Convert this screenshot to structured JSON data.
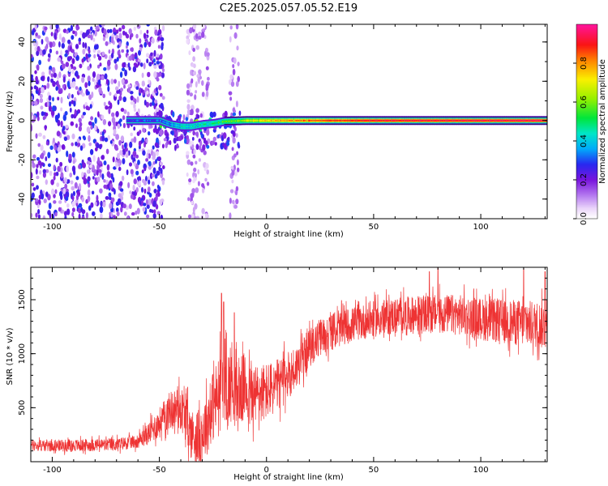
{
  "chart_data": [
    {
      "type": "heatmap",
      "title": "C2E5.2025.057.05.52.E19",
      "xlabel": "Height of straight line (km)",
      "ylabel": "Frequency (Hz)",
      "xlim": [
        -110,
        131
      ],
      "ylim": [
        -50,
        49
      ],
      "xticks": [
        -100,
        -50,
        0,
        50,
        100
      ],
      "xtick_labels": [
        "-100",
        "-50",
        "0",
        "50",
        "100"
      ],
      "yticks": [
        -40,
        -20,
        0,
        20,
        40
      ],
      "ytick_labels": [
        "-40",
        "-20",
        "0",
        "20",
        "40"
      ],
      "colorbar": {
        "label": "Normalized spectral amplitude",
        "range": [
          0,
          1
        ],
        "ticks": [
          0,
          0.2,
          0.4,
          0.6,
          0.8
        ],
        "tick_labels": [
          "0.0",
          "0.2",
          "0.4",
          "0.6",
          "0.8"
        ],
        "colormap": "rainbow-white-purple-blue-cyan-green-yellow-red-pink"
      },
      "features": {
        "noise_x_range": [
          -110,
          -48
        ],
        "noise_amplitude": [
          0.05,
          0.3
        ],
        "sparse_noise_x_ranges": [
          [
            -37,
            -27
          ],
          [
            -17,
            -13
          ]
        ],
        "line_frequency": 0,
        "onset_x": -50,
        "line_amplitude_points": [
          [
            -65,
            0.3
          ],
          [
            -52,
            0.3
          ],
          [
            -45,
            0.35
          ],
          [
            -40,
            0.45
          ],
          [
            -30,
            0.45
          ],
          [
            -20,
            0.55
          ],
          [
            -10,
            0.65
          ],
          [
            0,
            0.75
          ],
          [
            20,
            0.85
          ],
          [
            50,
            0.92
          ],
          [
            131,
            0.95
          ]
        ],
        "line_frequency_offset_points": [
          [
            -50,
            0
          ],
          [
            -45,
            -2
          ],
          [
            -40,
            -3
          ],
          [
            -35,
            -3
          ],
          [
            -30,
            -2
          ],
          [
            -25,
            -1.5
          ],
          [
            -20,
            -0.5
          ],
          [
            -10,
            0
          ],
          [
            131,
            0
          ]
        ]
      }
    },
    {
      "type": "line",
      "title": "",
      "xlabel": "Height of straight line (km)",
      "ylabel": "SNR (10 * v/v)",
      "xlim": [
        -110,
        131
      ],
      "ylim": [
        0,
        1800
      ],
      "xticks": [
        -100,
        -50,
        0,
        50,
        100
      ],
      "xtick_labels": [
        "-100",
        "-50",
        "0",
        "50",
        "100"
      ],
      "yticks": [
        500,
        1000,
        1500
      ],
      "ytick_labels": [
        "500",
        "1000",
        "1500"
      ],
      "series_color": "#ee3333",
      "series_points": [
        [
          -110,
          150
        ],
        [
          -90,
          150
        ],
        [
          -70,
          160
        ],
        [
          -60,
          190
        ],
        [
          -55,
          260
        ],
        [
          -50,
          360
        ],
        [
          -45,
          480
        ],
        [
          -40,
          500
        ],
        [
          -38,
          420
        ],
        [
          -35,
          250
        ],
        [
          -31,
          220
        ],
        [
          -28,
          350
        ],
        [
          -25,
          520
        ],
        [
          -22,
          620
        ],
        [
          -20,
          820
        ],
        [
          -18,
          650
        ],
        [
          -16,
          780
        ],
        [
          -14,
          600
        ],
        [
          -12,
          650
        ],
        [
          -10,
          700
        ],
        [
          -8,
          600
        ],
        [
          -5,
          620
        ],
        [
          0,
          650
        ],
        [
          5,
          700
        ],
        [
          10,
          800
        ],
        [
          15,
          900
        ],
        [
          20,
          1050
        ],
        [
          25,
          1150
        ],
        [
          30,
          1200
        ],
        [
          40,
          1270
        ],
        [
          50,
          1320
        ],
        [
          60,
          1350
        ],
        [
          70,
          1360
        ],
        [
          80,
          1370
        ],
        [
          90,
          1360
        ],
        [
          100,
          1320
        ],
        [
          110,
          1300
        ],
        [
          120,
          1280
        ],
        [
          131,
          1260
        ]
      ],
      "series_spread_points": [
        [
          -110,
          60
        ],
        [
          -60,
          70
        ],
        [
          -50,
          160
        ],
        [
          -40,
          230
        ],
        [
          -30,
          300
        ],
        [
          -20,
          450
        ],
        [
          -10,
          350
        ],
        [
          0,
          300
        ],
        [
          20,
          200
        ],
        [
          40,
          180
        ],
        [
          60,
          190
        ],
        [
          80,
          200
        ],
        [
          100,
          220
        ],
        [
          131,
          250
        ]
      ],
      "peaks": [
        [
          -21,
          1560
        ],
        [
          -20,
          1480
        ],
        [
          -15,
          1380
        ],
        [
          80,
          1830
        ],
        [
          76,
          1760
        ],
        [
          120,
          1790
        ],
        [
          130,
          1760
        ]
      ]
    }
  ]
}
